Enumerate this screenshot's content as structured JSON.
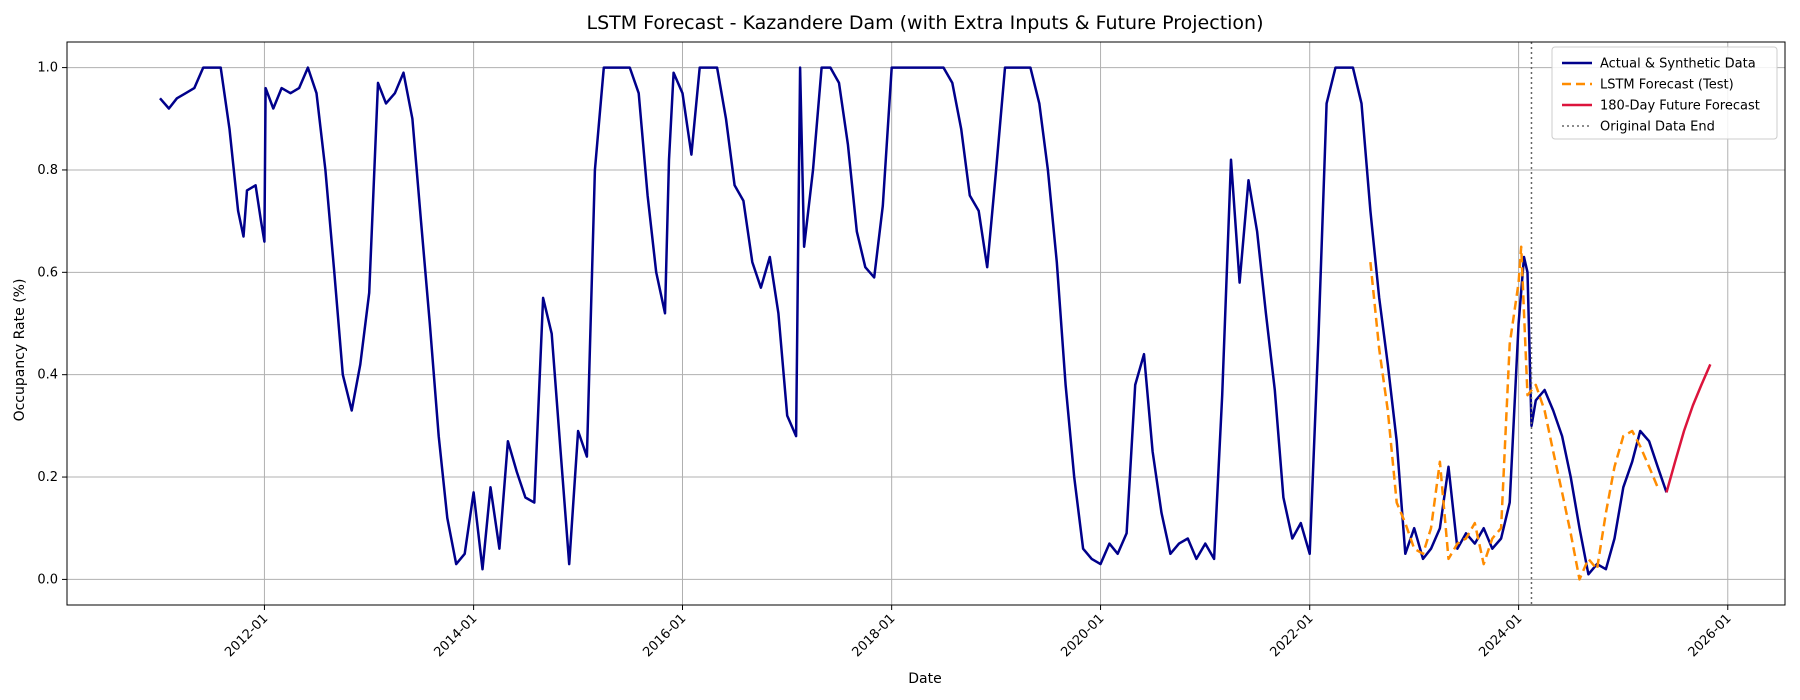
{
  "chart_data": {
    "type": "line",
    "title": "LSTM Forecast - Kazandere Dam (with Extra Inputs & Future Projection)",
    "xlabel": "Date",
    "ylabel": "Occupancy Rate (%)",
    "xlim": [
      "2010-02-10",
      "2026-07-20"
    ],
    "ylim": [
      -0.05,
      1.05
    ],
    "x_ticks": [
      "2012-01",
      "2014-01",
      "2016-01",
      "2018-01",
      "2020-01",
      "2022-01",
      "2024-01",
      "2026-01"
    ],
    "y_ticks": [
      0.0,
      0.2,
      0.4,
      0.6,
      0.8,
      1.0
    ],
    "grid": true,
    "legend_position": "top-right",
    "series": [
      {
        "name": "Actual & Synthetic Data",
        "color": "#00008b",
        "style": "solid",
        "points": [
          [
            "2011-01-01",
            0.94
          ],
          [
            "2011-02-01",
            0.92
          ],
          [
            "2011-03-01",
            0.94
          ],
          [
            "2011-04-01",
            0.95
          ],
          [
            "2011-05-01",
            0.96
          ],
          [
            "2011-06-01",
            1.0
          ],
          [
            "2011-07-01",
            1.0
          ],
          [
            "2011-08-01",
            1.0
          ],
          [
            "2011-09-01",
            0.88
          ],
          [
            "2011-10-01",
            0.72
          ],
          [
            "2011-10-20",
            0.67
          ],
          [
            "2011-11-01",
            0.76
          ],
          [
            "2011-12-01",
            0.77
          ],
          [
            "2011-12-20",
            0.7
          ],
          [
            "2012-01-01",
            0.66
          ],
          [
            "2012-01-05",
            0.96
          ],
          [
            "2012-02-01",
            0.92
          ],
          [
            "2012-03-01",
            0.96
          ],
          [
            "2012-04-01",
            0.95
          ],
          [
            "2012-05-01",
            0.96
          ],
          [
            "2012-06-01",
            1.0
          ],
          [
            "2012-07-01",
            0.95
          ],
          [
            "2012-08-01",
            0.8
          ],
          [
            "2012-09-01",
            0.6
          ],
          [
            "2012-10-01",
            0.4
          ],
          [
            "2012-11-01",
            0.33
          ],
          [
            "2012-12-01",
            0.42
          ],
          [
            "2013-01-01",
            0.56
          ],
          [
            "2013-02-01",
            0.97
          ],
          [
            "2013-03-01",
            0.93
          ],
          [
            "2013-04-01",
            0.95
          ],
          [
            "2013-05-01",
            0.99
          ],
          [
            "2013-06-01",
            0.9
          ],
          [
            "2013-07-01",
            0.7
          ],
          [
            "2013-08-01",
            0.5
          ],
          [
            "2013-09-01",
            0.28
          ],
          [
            "2013-10-01",
            0.12
          ],
          [
            "2013-11-01",
            0.03
          ],
          [
            "2013-12-01",
            0.05
          ],
          [
            "2014-01-01",
            0.17
          ],
          [
            "2014-02-01",
            0.02
          ],
          [
            "2014-03-01",
            0.18
          ],
          [
            "2014-04-01",
            0.06
          ],
          [
            "2014-05-01",
            0.27
          ],
          [
            "2014-06-01",
            0.21
          ],
          [
            "2014-07-01",
            0.16
          ],
          [
            "2014-08-01",
            0.15
          ],
          [
            "2014-09-01",
            0.55
          ],
          [
            "2014-10-01",
            0.48
          ],
          [
            "2014-11-01",
            0.25
          ],
          [
            "2014-12-01",
            0.03
          ],
          [
            "2015-01-01",
            0.29
          ],
          [
            "2015-02-01",
            0.24
          ],
          [
            "2015-03-01",
            0.8
          ],
          [
            "2015-04-01",
            1.0
          ],
          [
            "2015-07-01",
            1.0
          ],
          [
            "2015-08-01",
            0.95
          ],
          [
            "2015-09-01",
            0.75
          ],
          [
            "2015-10-01",
            0.6
          ],
          [
            "2015-11-01",
            0.52
          ],
          [
            "2015-11-15",
            0.82
          ],
          [
            "2015-12-01",
            0.99
          ],
          [
            "2016-01-01",
            0.95
          ],
          [
            "2016-02-01",
            0.83
          ],
          [
            "2016-03-01",
            1.0
          ],
          [
            "2016-04-01",
            1.0
          ],
          [
            "2016-05-01",
            1.0
          ],
          [
            "2016-06-01",
            0.9
          ],
          [
            "2016-07-01",
            0.77
          ],
          [
            "2016-08-01",
            0.74
          ],
          [
            "2016-09-01",
            0.62
          ],
          [
            "2016-10-01",
            0.57
          ],
          [
            "2016-11-01",
            0.63
          ],
          [
            "2016-12-01",
            0.52
          ],
          [
            "2017-01-01",
            0.32
          ],
          [
            "2017-02-01",
            0.28
          ],
          [
            "2017-02-15",
            1.0
          ],
          [
            "2017-03-01",
            0.65
          ],
          [
            "2017-04-01",
            0.8
          ],
          [
            "2017-05-01",
            1.0
          ],
          [
            "2017-06-01",
            1.0
          ],
          [
            "2017-07-01",
            0.97
          ],
          [
            "2017-08-01",
            0.85
          ],
          [
            "2017-09-01",
            0.68
          ],
          [
            "2017-10-01",
            0.61
          ],
          [
            "2017-11-01",
            0.59
          ],
          [
            "2017-12-01",
            0.73
          ],
          [
            "2018-01-01",
            1.0
          ],
          [
            "2018-04-01",
            1.0
          ],
          [
            "2018-07-01",
            1.0
          ],
          [
            "2018-08-01",
            0.97
          ],
          [
            "2018-09-01",
            0.88
          ],
          [
            "2018-10-01",
            0.75
          ],
          [
            "2018-11-01",
            0.72
          ],
          [
            "2018-12-01",
            0.61
          ],
          [
            "2019-01-01",
            0.8
          ],
          [
            "2019-02-01",
            1.0
          ],
          [
            "2019-05-01",
            1.0
          ],
          [
            "2019-06-01",
            0.93
          ],
          [
            "2019-07-01",
            0.8
          ],
          [
            "2019-08-01",
            0.62
          ],
          [
            "2019-09-01",
            0.38
          ],
          [
            "2019-10-01",
            0.2
          ],
          [
            "2019-11-01",
            0.06
          ],
          [
            "2019-12-01",
            0.04
          ],
          [
            "2020-01-01",
            0.03
          ],
          [
            "2020-02-01",
            0.07
          ],
          [
            "2020-03-01",
            0.05
          ],
          [
            "2020-04-01",
            0.09
          ],
          [
            "2020-05-01",
            0.38
          ],
          [
            "2020-06-01",
            0.44
          ],
          [
            "2020-07-01",
            0.25
          ],
          [
            "2020-08-01",
            0.13
          ],
          [
            "2020-09-01",
            0.05
          ],
          [
            "2020-10-01",
            0.07
          ],
          [
            "2020-11-01",
            0.08
          ],
          [
            "2020-12-01",
            0.04
          ],
          [
            "2021-01-01",
            0.07
          ],
          [
            "2021-02-01",
            0.04
          ],
          [
            "2021-03-01",
            0.36
          ],
          [
            "2021-04-01",
            0.82
          ],
          [
            "2021-05-01",
            0.58
          ],
          [
            "2021-06-01",
            0.78
          ],
          [
            "2021-07-01",
            0.68
          ],
          [
            "2021-08-01",
            0.52
          ],
          [
            "2021-09-01",
            0.37
          ],
          [
            "2021-10-01",
            0.16
          ],
          [
            "2021-11-01",
            0.08
          ],
          [
            "2021-12-01",
            0.11
          ],
          [
            "2022-01-01",
            0.05
          ],
          [
            "2022-02-01",
            0.48
          ],
          [
            "2022-03-01",
            0.93
          ],
          [
            "2022-04-01",
            1.0
          ],
          [
            "2022-06-01",
            1.0
          ],
          [
            "2022-07-01",
            0.93
          ],
          [
            "2022-08-01",
            0.72
          ],
          [
            "2022-09-01",
            0.55
          ],
          [
            "2022-10-01",
            0.42
          ],
          [
            "2022-11-01",
            0.27
          ],
          [
            "2022-12-01",
            0.05
          ],
          [
            "2023-01-01",
            0.1
          ],
          [
            "2023-02-01",
            0.04
          ],
          [
            "2023-03-01",
            0.06
          ],
          [
            "2023-04-01",
            0.1
          ],
          [
            "2023-05-01",
            0.22
          ],
          [
            "2023-06-01",
            0.06
          ],
          [
            "2023-07-01",
            0.09
          ],
          [
            "2023-08-01",
            0.07
          ],
          [
            "2023-09-01",
            0.1
          ],
          [
            "2023-10-01",
            0.06
          ],
          [
            "2023-11-01",
            0.08
          ],
          [
            "2023-12-01",
            0.15
          ],
          [
            "2024-01-01",
            0.5
          ],
          [
            "2024-01-20",
            0.63
          ],
          [
            "2024-02-01",
            0.6
          ],
          [
            "2024-02-15",
            0.3
          ],
          [
            "2024-03-01",
            0.35
          ],
          [
            "2024-04-01",
            0.37
          ],
          [
            "2024-05-01",
            0.33
          ],
          [
            "2024-06-01",
            0.28
          ],
          [
            "2024-07-01",
            0.2
          ],
          [
            "2024-08-01",
            0.1
          ],
          [
            "2024-09-01",
            0.01
          ],
          [
            "2024-10-01",
            0.03
          ],
          [
            "2024-11-01",
            0.02
          ],
          [
            "2024-12-01",
            0.08
          ],
          [
            "2025-01-01",
            0.18
          ],
          [
            "2025-02-01",
            0.23
          ],
          [
            "2025-03-01",
            0.29
          ],
          [
            "2025-04-01",
            0.27
          ],
          [
            "2025-05-01",
            0.22
          ],
          [
            "2025-06-01",
            0.17
          ]
        ]
      },
      {
        "name": "LSTM Forecast (Test)",
        "color": "#ff8c00",
        "style": "dashed",
        "points": [
          [
            "2022-08-01",
            0.62
          ],
          [
            "2022-09-01",
            0.45
          ],
          [
            "2022-10-01",
            0.33
          ],
          [
            "2022-11-01",
            0.15
          ],
          [
            "2022-12-01",
            0.11
          ],
          [
            "2023-01-01",
            0.06
          ],
          [
            "2023-02-01",
            0.05
          ],
          [
            "2023-03-01",
            0.1
          ],
          [
            "2023-04-01",
            0.23
          ],
          [
            "2023-05-01",
            0.04
          ],
          [
            "2023-06-01",
            0.07
          ],
          [
            "2023-07-01",
            0.08
          ],
          [
            "2023-08-01",
            0.11
          ],
          [
            "2023-09-01",
            0.03
          ],
          [
            "2023-10-01",
            0.08
          ],
          [
            "2023-11-01",
            0.1
          ],
          [
            "2023-12-01",
            0.46
          ],
          [
            "2024-01-01",
            0.58
          ],
          [
            "2024-01-10",
            0.65
          ],
          [
            "2024-02-01",
            0.36
          ],
          [
            "2024-03-01",
            0.38
          ],
          [
            "2024-04-01",
            0.33
          ],
          [
            "2024-05-01",
            0.25
          ],
          [
            "2024-06-01",
            0.17
          ],
          [
            "2024-07-01",
            0.09
          ],
          [
            "2024-08-01",
            0.0
          ],
          [
            "2024-09-01",
            0.04
          ],
          [
            "2024-10-01",
            0.02
          ],
          [
            "2024-11-01",
            0.13
          ],
          [
            "2024-12-01",
            0.22
          ],
          [
            "2025-01-01",
            0.28
          ],
          [
            "2025-02-01",
            0.29
          ],
          [
            "2025-03-01",
            0.26
          ],
          [
            "2025-04-01",
            0.22
          ],
          [
            "2025-05-01",
            0.18
          ]
        ]
      },
      {
        "name": "180-Day Future Forecast",
        "color": "#dc143c",
        "style": "solid",
        "points": [
          [
            "2025-06-01",
            0.17
          ],
          [
            "2025-07-01",
            0.23
          ],
          [
            "2025-08-01",
            0.29
          ],
          [
            "2025-09-01",
            0.34
          ],
          [
            "2025-10-01",
            0.38
          ],
          [
            "2025-11-01",
            0.42
          ]
        ]
      },
      {
        "name": "Original Data End",
        "color": "#666666",
        "style": "dotted",
        "vline": "2024-02-15"
      }
    ]
  }
}
